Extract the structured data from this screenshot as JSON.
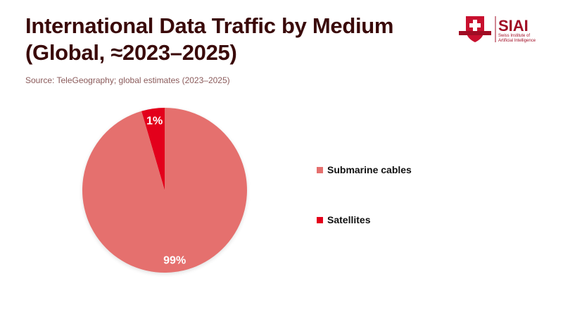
{
  "logo": {
    "text": "SIAI",
    "subtitle_line1": "Swiss Institute of",
    "subtitle_line2": "Artificial Intelligence"
  },
  "chart_data": {
    "type": "pie",
    "title": "International Data Traffic by Medium (Global, ≈2023–2025)",
    "subtitle": "Source: TeleGeography; global estimates (2023–2025)",
    "categories": [
      "Submarine cables",
      "Satellites"
    ],
    "values": [
      99,
      1
    ],
    "data_labels": [
      "99%",
      "1%"
    ],
    "colors": [
      "#E5706E",
      "#E3001B"
    ],
    "legend_position": "right"
  }
}
